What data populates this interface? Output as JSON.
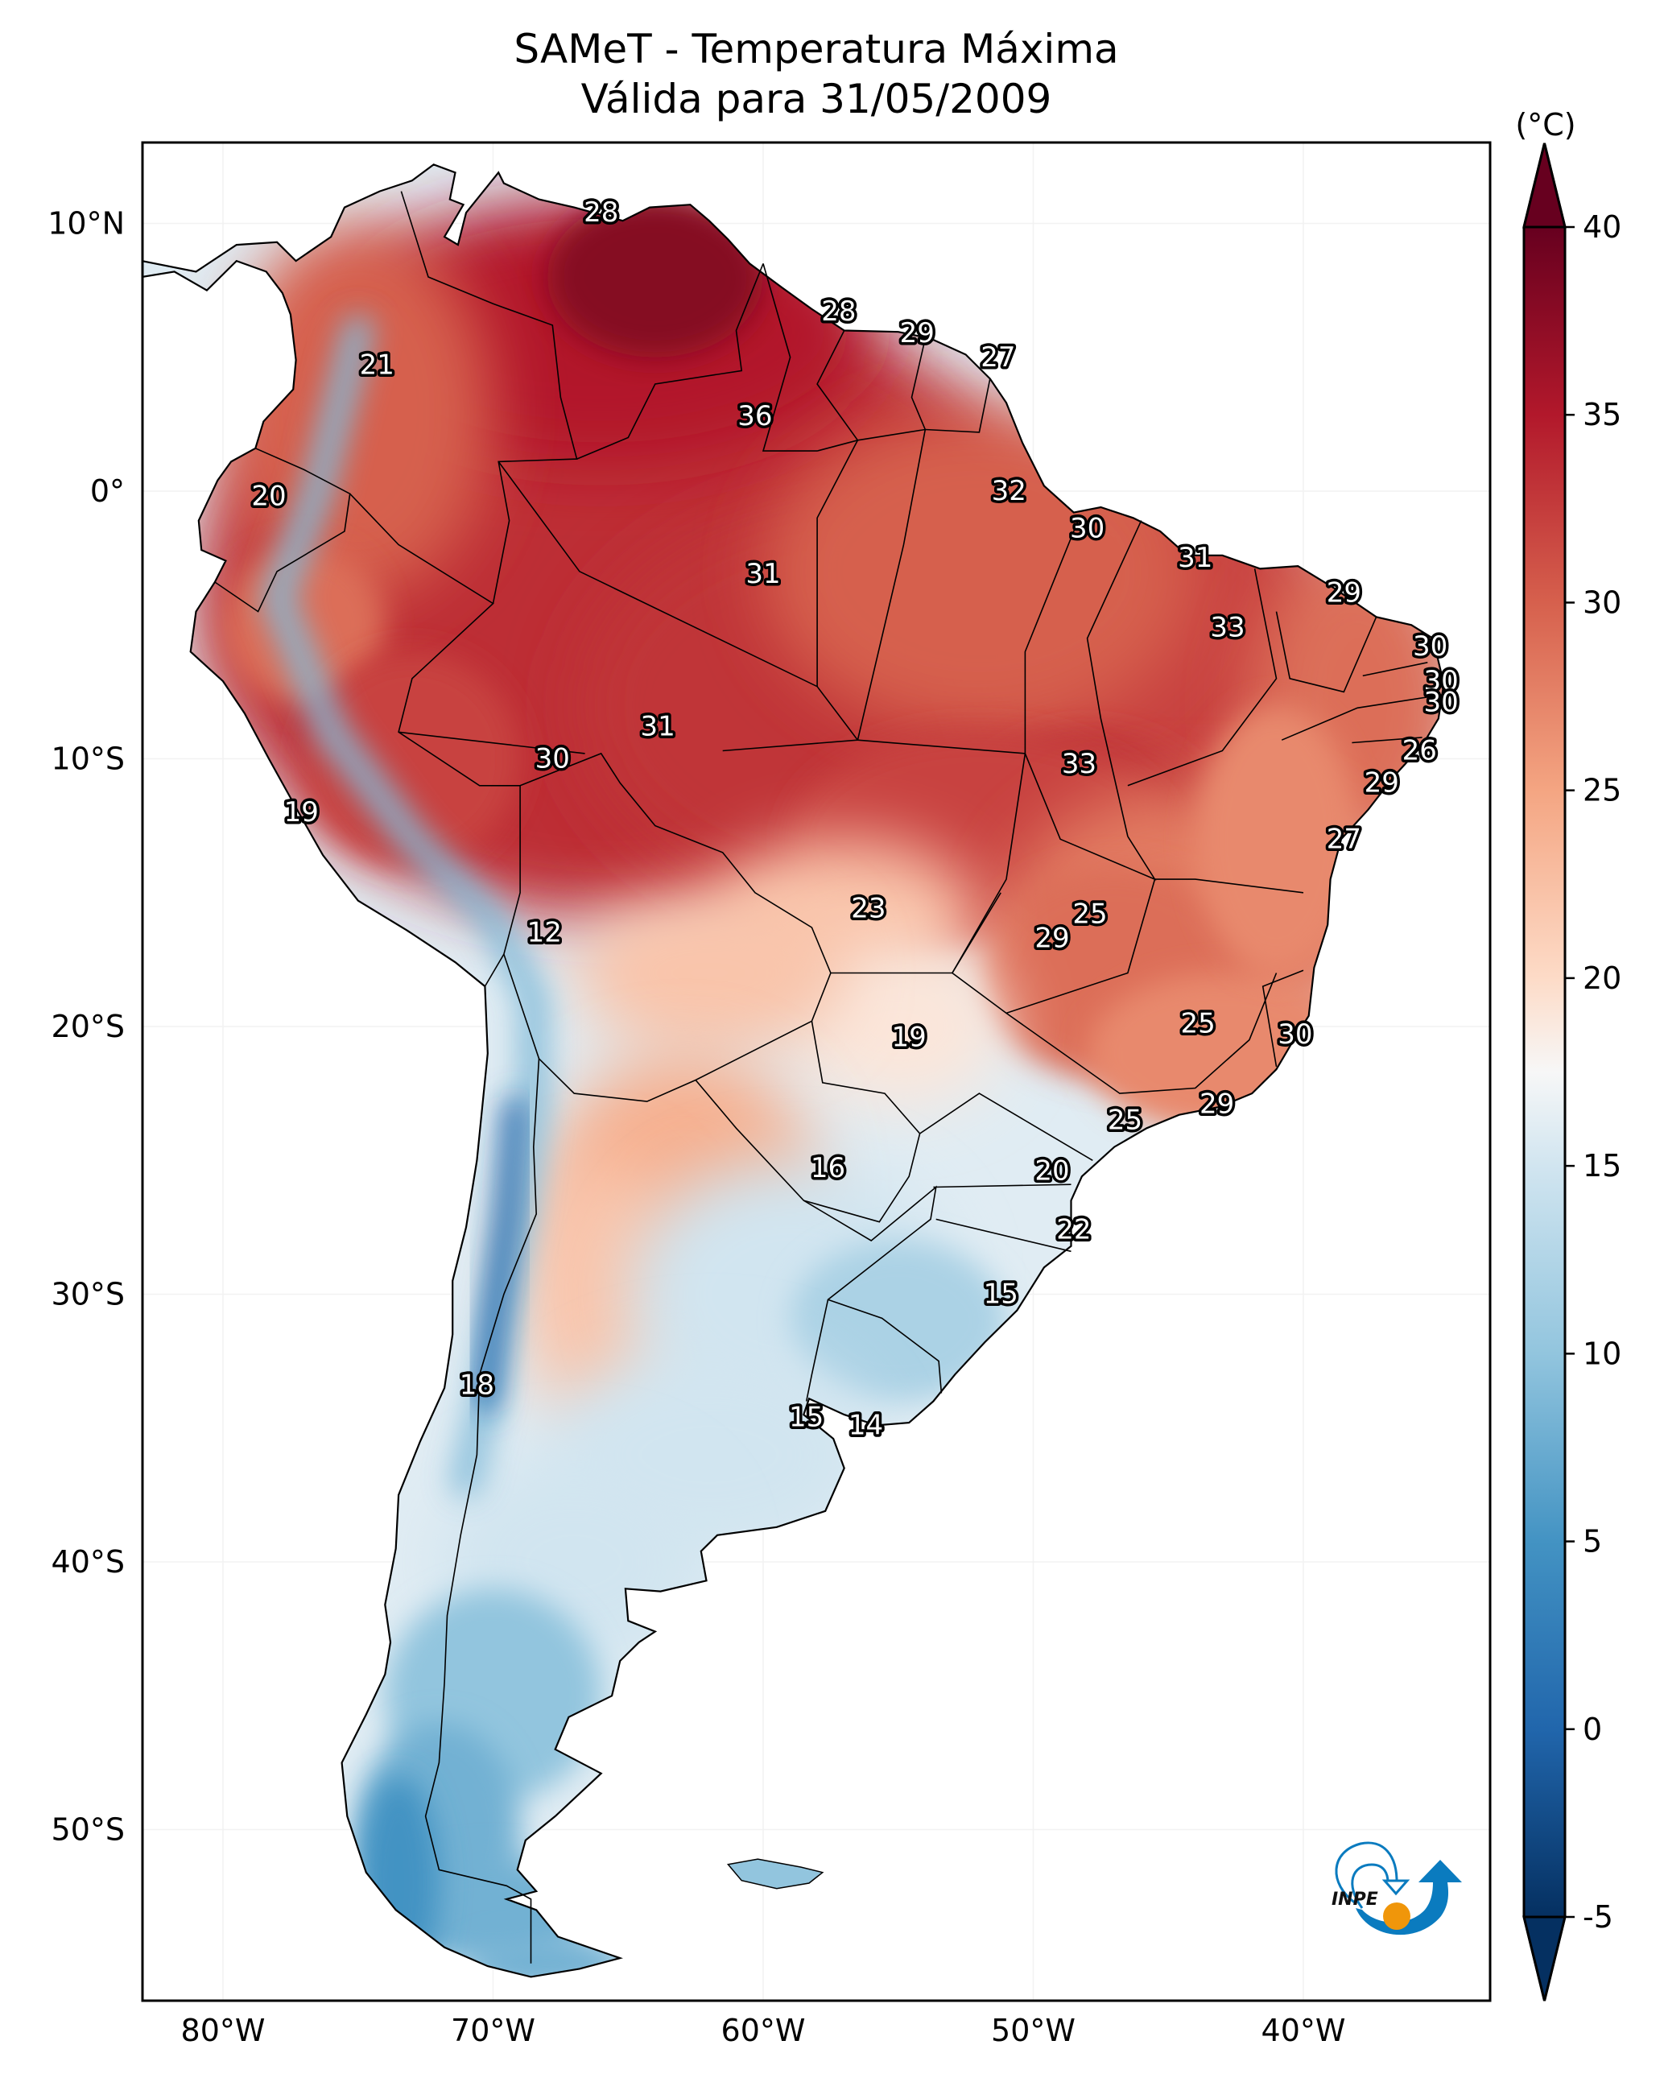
{
  "title": {
    "line1": "SAMeT - Temperatura Máxima",
    "line2": "Válida para 31/05/2009"
  },
  "logo": {
    "text": "INPE",
    "name": "INPE logo"
  },
  "colors": {
    "frame": "#000000",
    "border": "#000000",
    "label_fill": "#ffffff",
    "label_stroke": "#000000",
    "logo_blue": "#0a7bbf",
    "logo_orange": "#f0960a"
  },
  "chart_data": {
    "type": "heatmap",
    "title": "SAMeT - Temperatura Máxima — Válida para 31/05/2009",
    "variable": "Temperatura Máxima",
    "date": "31/05/2009",
    "xlabel": "",
    "ylabel": "",
    "x_range_lon": [
      -83,
      -33
    ],
    "y_range_lat": [
      -56,
      13
    ],
    "x_ticks": [
      {
        "value": -80,
        "label": "80°W"
      },
      {
        "value": -70,
        "label": "70°W"
      },
      {
        "value": -60,
        "label": "60°W"
      },
      {
        "value": -50,
        "label": "50°W"
      },
      {
        "value": -40,
        "label": "40°W"
      }
    ],
    "y_ticks": [
      {
        "value": 10,
        "label": "10°N"
      },
      {
        "value": 0,
        "label": "0°"
      },
      {
        "value": -10,
        "label": "10°S"
      },
      {
        "value": -20,
        "label": "20°S"
      },
      {
        "value": -30,
        "label": "30°S"
      },
      {
        "value": -40,
        "label": "40°S"
      },
      {
        "value": -50,
        "label": "50°S"
      }
    ],
    "grid": true,
    "colorbar": {
      "label": "(°C)",
      "min": -5,
      "max": 40,
      "extend": "both",
      "ticks": [
        -5,
        0,
        5,
        10,
        15,
        20,
        25,
        30,
        35,
        40
      ],
      "tick_labels": [
        "-5",
        "0",
        "5",
        "10",
        "15",
        "20",
        "25",
        "30",
        "35",
        "40"
      ],
      "colormap": "RdBu_r",
      "placement": "right",
      "stops": [
        {
          "v": -5,
          "c": "#053061"
        },
        {
          "v": 0,
          "c": "#2166ac"
        },
        {
          "v": 5,
          "c": "#4393c3"
        },
        {
          "v": 10,
          "c": "#92c5de"
        },
        {
          "v": 15,
          "c": "#d1e5f0"
        },
        {
          "v": 17.5,
          "c": "#f7f7f7"
        },
        {
          "v": 20,
          "c": "#fddbc7"
        },
        {
          "v": 25,
          "c": "#f4a582"
        },
        {
          "v": 30,
          "c": "#d6604d"
        },
        {
          "v": 35,
          "c": "#b2182b"
        },
        {
          "v": 40,
          "c": "#67001f"
        }
      ]
    },
    "station_labels": [
      {
        "lon": -66.0,
        "lat": 10.4,
        "value": 28
      },
      {
        "lon": -74.3,
        "lat": 4.7,
        "value": 21
      },
      {
        "lon": -57.2,
        "lat": 6.7,
        "value": 28
      },
      {
        "lon": -54.3,
        "lat": 5.9,
        "value": 29
      },
      {
        "lon": -51.3,
        "lat": 5.0,
        "value": 27
      },
      {
        "lon": -60.3,
        "lat": 2.8,
        "value": 36
      },
      {
        "lon": -78.3,
        "lat": -0.2,
        "value": 20
      },
      {
        "lon": -50.9,
        "lat": 0.0,
        "value": 32
      },
      {
        "lon": -48.0,
        "lat": -1.4,
        "value": 30
      },
      {
        "lon": -60.0,
        "lat": -3.1,
        "value": 31
      },
      {
        "lon": -44.0,
        "lat": -2.5,
        "value": 31
      },
      {
        "lon": -42.8,
        "lat": -5.1,
        "value": 33
      },
      {
        "lon": -38.5,
        "lat": -3.8,
        "value": 29
      },
      {
        "lon": -35.3,
        "lat": -5.8,
        "value": 30
      },
      {
        "lon": -34.9,
        "lat": -7.1,
        "value": 30
      },
      {
        "lon": -34.9,
        "lat": -7.9,
        "value": 30
      },
      {
        "lon": -35.7,
        "lat": -9.7,
        "value": 26
      },
      {
        "lon": -37.1,
        "lat": -10.9,
        "value": 29
      },
      {
        "lon": -38.5,
        "lat": -13.0,
        "value": 27
      },
      {
        "lon": -63.9,
        "lat": -8.8,
        "value": 31
      },
      {
        "lon": -67.8,
        "lat": -10.0,
        "value": 30
      },
      {
        "lon": -48.3,
        "lat": -10.2,
        "value": 33
      },
      {
        "lon": -77.1,
        "lat": -12.0,
        "value": 19
      },
      {
        "lon": -68.1,
        "lat": -16.5,
        "value": 12
      },
      {
        "lon": -56.1,
        "lat": -15.6,
        "value": 23
      },
      {
        "lon": -47.9,
        "lat": -15.8,
        "value": 25
      },
      {
        "lon": -49.3,
        "lat": -16.7,
        "value": 29
      },
      {
        "lon": -54.6,
        "lat": -20.4,
        "value": 19
      },
      {
        "lon": -43.9,
        "lat": -19.9,
        "value": 25
      },
      {
        "lon": -40.3,
        "lat": -20.3,
        "value": 30
      },
      {
        "lon": -46.6,
        "lat": -23.5,
        "value": 25
      },
      {
        "lon": -43.2,
        "lat": -22.9,
        "value": 29
      },
      {
        "lon": -57.6,
        "lat": -25.3,
        "value": 16
      },
      {
        "lon": -49.3,
        "lat": -25.4,
        "value": 20
      },
      {
        "lon": -48.5,
        "lat": -27.6,
        "value": 22
      },
      {
        "lon": -51.2,
        "lat": -30.0,
        "value": 15
      },
      {
        "lon": -70.6,
        "lat": -33.4,
        "value": 18
      },
      {
        "lon": -58.4,
        "lat": -34.6,
        "value": 15
      },
      {
        "lon": -56.2,
        "lat": -34.9,
        "value": 14
      }
    ]
  }
}
